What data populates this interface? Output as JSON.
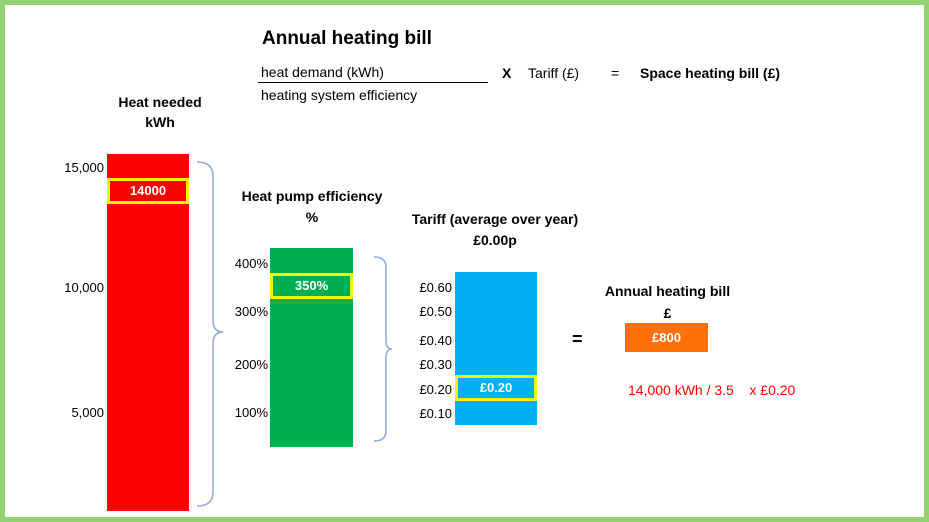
{
  "title": "Annual heating bill",
  "formula": {
    "numerator": "heat demand (kWh)",
    "denominator": "heating system efficiency",
    "times": "X",
    "tariff": "Tariff (£)",
    "equals": "=",
    "result": "Space heating bill (£)"
  },
  "heat_needed": {
    "label_line1": "Heat needed",
    "label_line2": "kWh",
    "axis_ticks": [
      "15,000",
      "10,000",
      "5,000"
    ],
    "value_label": "14000",
    "value": 14000,
    "color": "#ff0000"
  },
  "heat_pump": {
    "label_line1": "Heat pump efficiency",
    "label_line2": "%",
    "axis_ticks": [
      "400%",
      "300%",
      "200%",
      "100%"
    ],
    "value_label": "350%",
    "value": 350,
    "color": "#00b050"
  },
  "tariff": {
    "label_line1": "Tariff (average over year)",
    "label_line2": "£0.00p",
    "axis_ticks": [
      "£0.60",
      "£0.50",
      "£0.40",
      "£0.30",
      "£0.20",
      "£0.10"
    ],
    "value_label": "£0.20",
    "value": 0.2,
    "color": "#00b0f0"
  },
  "equals_sign": "=",
  "bill": {
    "label_line1": "Annual heating bill",
    "label_line2": "£",
    "value_label": "£800",
    "color": "#ff6f0a"
  },
  "calculation": "14,000 kWh / 3.5    x £0.20",
  "colors": {
    "border": "#92d26f",
    "highlight": "#f2f20a",
    "calculation_text": "#ff0000",
    "brace": "#8faadc"
  }
}
